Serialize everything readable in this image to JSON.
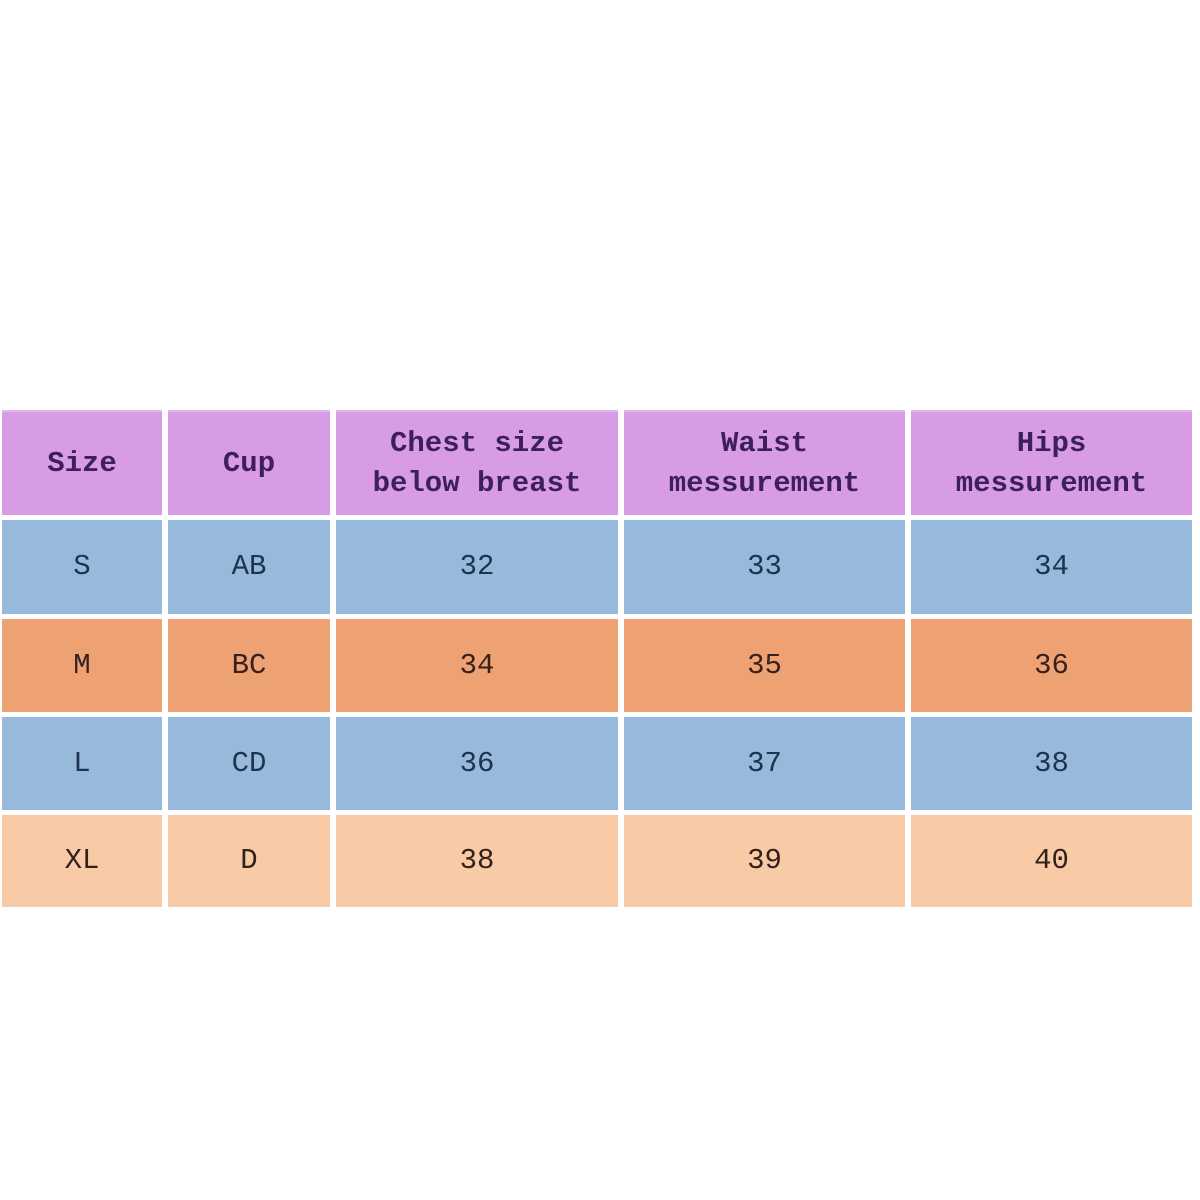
{
  "table": {
    "headers": [
      "Size",
      "Cup",
      "Chest size below breast",
      "Waist messurement",
      "Hips messurement"
    ],
    "rows": [
      {
        "size": "S",
        "cup": "AB",
        "chest": "32",
        "waist": "33",
        "hips": "34",
        "tone": "blue"
      },
      {
        "size": "M",
        "cup": "BC",
        "chest": "34",
        "waist": "35",
        "hips": "36",
        "tone": "orange"
      },
      {
        "size": "L",
        "cup": "CD",
        "chest": "36",
        "waist": "37",
        "hips": "38",
        "tone": "blue"
      },
      {
        "size": "XL",
        "cup": "D",
        "chest": "38",
        "waist": "39",
        "hips": "40",
        "tone": "peach"
      }
    ]
  },
  "colors": {
    "header_bg": "#d79ce4",
    "header_text": "#3d1f5d",
    "row_blue_bg": "#96b9dc",
    "row_orange_bg": "#eea173",
    "row_peach_bg": "#f8cba6",
    "cell_text_blue": "#1e3350",
    "cell_text_dark": "#38211a",
    "background": "#ffffff"
  }
}
